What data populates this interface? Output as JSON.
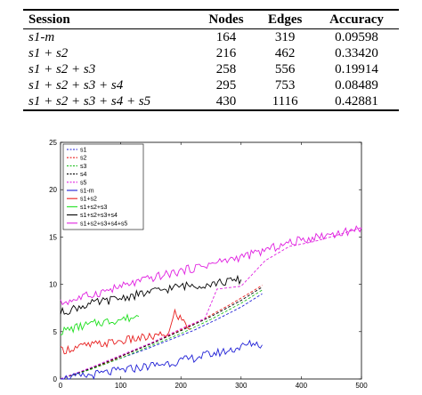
{
  "table": {
    "headers": [
      "Session",
      "Nodes",
      "Edges",
      "Accuracy"
    ],
    "rows": [
      [
        "s1-m",
        "164",
        "319",
        "0.09598"
      ],
      [
        "s1 + s2",
        "216",
        "462",
        "0.33420"
      ],
      [
        "s1 + s2 + s3",
        "258",
        "556",
        "0.19914"
      ],
      [
        "s1 + s2 + s3 + s4",
        "295",
        "753",
        "0.08489"
      ],
      [
        "s1 + s2 + s3 + s4 + s5",
        "430",
        "1116",
        "0.42881"
      ]
    ]
  },
  "chart_data": {
    "type": "line",
    "title": "",
    "xlabel": "",
    "ylabel": "",
    "xlim": [
      0,
      500
    ],
    "ylim": [
      0,
      25
    ],
    "xticks": [
      "0",
      "100",
      "200",
      "300",
      "400",
      "500"
    ],
    "yticks": [
      "0",
      "5",
      "10",
      "15",
      "20",
      "25"
    ],
    "grid": false,
    "legend_position": "top-left",
    "series": [
      {
        "name": "s1",
        "color": "#1f1fd6",
        "dash": true,
        "x": [
          0,
          20,
          60,
          100,
          140,
          180,
          220,
          260,
          300,
          335
        ],
        "y": [
          0,
          0.5,
          1.3,
          2.2,
          3.1,
          4.1,
          5.1,
          6.3,
          7.6,
          9.0
        ]
      },
      {
        "name": "s2",
        "color": "#e81f1f",
        "dash": true,
        "x": [
          0,
          40,
          80,
          120,
          160,
          200,
          240,
          280,
          320,
          335
        ],
        "y": [
          0,
          0.8,
          1.8,
          2.9,
          4.0,
          5.2,
          6.4,
          7.8,
          9.3,
          9.9
        ]
      },
      {
        "name": "s3",
        "color": "#1fbf1f",
        "dash": true,
        "x": [
          0,
          50,
          100,
          150,
          200,
          250,
          300,
          335
        ],
        "y": [
          0,
          1.0,
          2.2,
          3.5,
          4.8,
          6.3,
          8.0,
          9.4
        ]
      },
      {
        "name": "s4",
        "color": "#000000",
        "dash": true,
        "x": [
          0,
          50,
          100,
          150,
          200,
          250,
          300,
          335
        ],
        "y": [
          0,
          1.1,
          2.4,
          3.7,
          5.1,
          6.6,
          8.3,
          9.7
        ]
      },
      {
        "name": "s5",
        "color": "#e020e0",
        "dash": true,
        "x": [
          0,
          50,
          100,
          150,
          200,
          240,
          260,
          300,
          340,
          380,
          420,
          460,
          500
        ],
        "y": [
          0,
          1.2,
          2.5,
          3.8,
          5.3,
          6.4,
          9.5,
          9.8,
          12.5,
          14.0,
          14.5,
          15.2,
          16.0
        ]
      },
      {
        "name": "s1-m",
        "color": "#1f1fd6",
        "dash": false,
        "x": [
          0,
          40,
          80,
          120,
          160,
          200,
          240,
          280,
          300,
          320,
          335
        ],
        "y": [
          0,
          0.3,
          0.7,
          1.1,
          1.5,
          1.9,
          2.5,
          3.0,
          3.4,
          3.8,
          3.6
        ]
      },
      {
        "name": "s1+s2",
        "color": "#e81f1f",
        "dash": false,
        "x": [
          0,
          40,
          80,
          120,
          160,
          180,
          190,
          216
        ],
        "y": [
          3.0,
          3.5,
          3.8,
          4.2,
          4.5,
          4.8,
          7.0,
          5.3
        ]
      },
      {
        "name": "s1+s2+s3",
        "color": "#1fe01f",
        "dash": false,
        "x": [
          0,
          30,
          60,
          90,
          120,
          130
        ],
        "y": [
          5.0,
          5.5,
          5.9,
          6.2,
          6.5,
          6.6
        ]
      },
      {
        "name": "s1+s2+s3+s4",
        "color": "#000000",
        "dash": false,
        "x": [
          0,
          40,
          80,
          120,
          160,
          200,
          240,
          280,
          300
        ],
        "y": [
          7.0,
          7.8,
          8.3,
          8.8,
          9.3,
          9.8,
          10.0,
          10.3,
          10.5
        ]
      },
      {
        "name": "s1+s2+s3+s4+s5",
        "color": "#e020e0",
        "dash": false,
        "x": [
          0,
          40,
          80,
          120,
          160,
          200,
          240,
          280,
          320,
          360,
          400,
          440,
          480,
          500
        ],
        "y": [
          8.0,
          8.7,
          9.4,
          10.1,
          10.8,
          11.4,
          12.0,
          12.6,
          13.2,
          14.0,
          14.7,
          15.2,
          15.6,
          16.0
        ]
      }
    ]
  }
}
